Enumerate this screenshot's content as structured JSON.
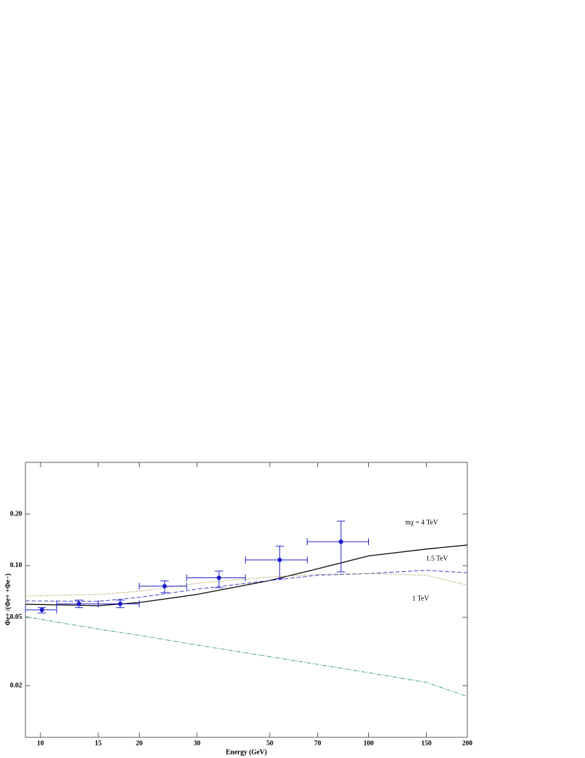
{
  "chart_data": {
    "type": "line",
    "log_x": true,
    "log_y": true,
    "x_label": "Energy (GeV)",
    "y_label": "Φe+ /(Φe+ +Φe−)",
    "xlim": [
      9,
      200
    ],
    "ylim": [
      0.01,
      0.4
    ],
    "xticks": [
      10,
      15,
      20,
      30,
      50,
      70,
      100,
      150,
      200
    ],
    "yticks": [
      {
        "value": 0.02,
        "label": "0.02"
      },
      {
        "value": 0.05,
        "label": "0.05"
      },
      {
        "value": 0.1,
        "label": "0.10"
      },
      {
        "value": 0.2,
        "label": "0.20"
      }
    ],
    "x": [
      9,
      15,
      20,
      30,
      50,
      70,
      100,
      150,
      200
    ],
    "series": [
      {
        "name": "mχ = 4 TeV",
        "color": "#000000",
        "dash": "none",
        "values": [
          0.0596,
          0.0585,
          0.061,
          0.068,
          0.082,
          0.096,
          0.114,
          0.125,
          0.132
        ]
      },
      {
        "name": "1.5 TeV",
        "color": "#3a3ac0",
        "dash": "6 3",
        "values": [
          0.0624,
          0.062,
          0.0654,
          0.073,
          0.082,
          0.088,
          0.09,
          0.094,
          0.091
        ]
      },
      {
        "name": "1 TeV",
        "color": "#9a8a3a",
        "dash": "1.5 2",
        "values": [
          0.0666,
          0.068,
          0.071,
          0.079,
          0.086,
          0.089,
          0.09,
          0.088,
          0.077
        ]
      },
      {
        "color": "#3a9a9a",
        "dash": "6 2 1.5 2",
        "values": [
          0.0505,
          0.0427,
          0.0393,
          0.0345,
          0.0295,
          0.0266,
          0.0238,
          0.0209,
          0.0173
        ]
      }
    ],
    "points": {
      "color": "#1a1acc",
      "x": [
        10.1,
        13.1,
        17.5,
        23.9,
        35.0,
        53.6,
        82.4
      ],
      "y": [
        0.0553,
        0.06,
        0.06,
        0.076,
        0.085,
        0.108,
        0.138
      ],
      "x_low": [
        9.0,
        11.2,
        15,
        20,
        27.9,
        42.1,
        65
      ],
      "x_high": [
        11.2,
        15,
        20,
        27.9,
        42.1,
        65,
        100
      ],
      "y_low": [
        0.053,
        0.057,
        0.057,
        0.0697,
        0.0744,
        0.084,
        0.092
      ],
      "y_high": [
        0.057,
        0.063,
        0.063,
        0.0816,
        0.093,
        0.13,
        0.182
      ]
    }
  }
}
